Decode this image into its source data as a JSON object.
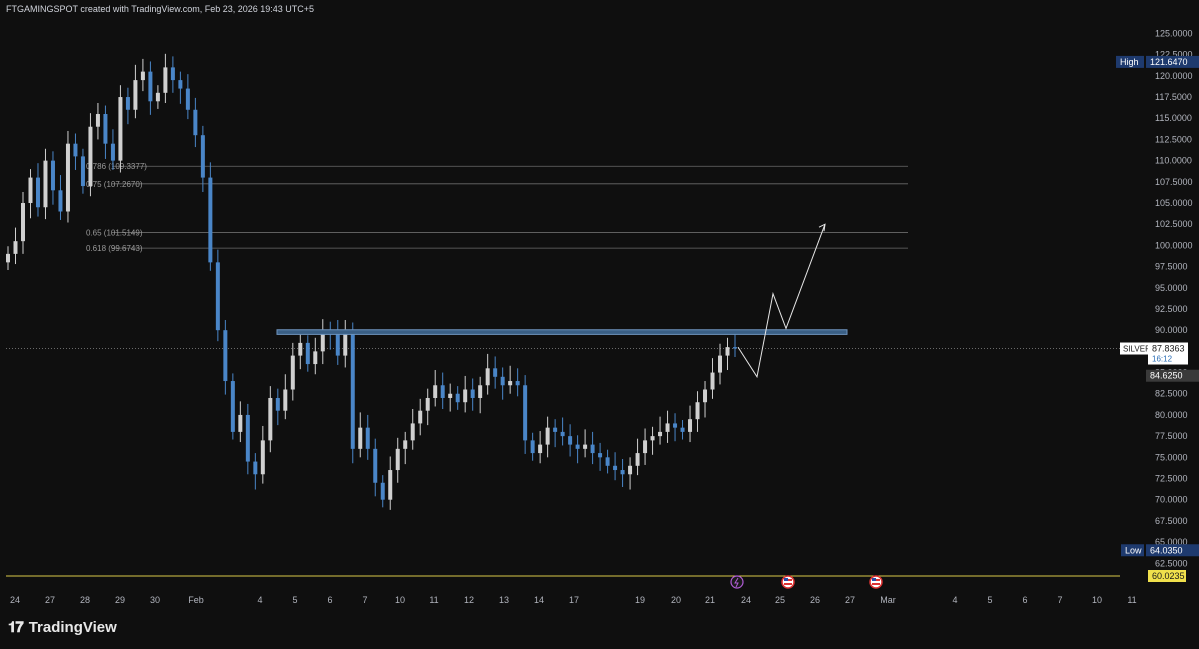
{
  "attribution": "FTGAMINGSPOT created with TradingView.com, Feb 23, 2026 19:43 UTC+5",
  "brand": {
    "name": "TradingView",
    "logo_icon": "tradingview-logo-icon"
  },
  "chart_data": {
    "type": "candlestick",
    "symbol": "SILVER",
    "y_range": [
      61.0,
      126.0
    ],
    "y_ticks": [
      "62.5000",
      "65.0000",
      "67.5000",
      "70.0000",
      "72.5000",
      "75.0000",
      "77.5000",
      "80.0000",
      "82.5000",
      "85.0000",
      "87.5000",
      "90.0000",
      "92.5000",
      "95.0000",
      "97.5000",
      "100.0000",
      "102.5000",
      "105.0000",
      "107.5000",
      "110.0000",
      "112.5000",
      "115.0000",
      "117.5000",
      "120.0000",
      "122.5000",
      "125.0000"
    ],
    "x_ticks": [
      "24",
      "27",
      "28",
      "29",
      "30",
      "Feb",
      "4",
      "5",
      "6",
      "7",
      "10",
      "11",
      "12",
      "13",
      "14",
      "17",
      "19",
      "20",
      "21",
      "24",
      "25",
      "26",
      "27",
      "Mar",
      "4",
      "5",
      "6",
      "7",
      "10",
      "11"
    ],
    "price_badges": {
      "high": {
        "label": "High",
        "value": "121.6470",
        "price": 121.647
      },
      "last": {
        "label": "SILVER",
        "value": "87.8363",
        "countdown": "16:12",
        "price": 87.8363
      },
      "level": {
        "value": "84.6250",
        "price": 84.625
      },
      "low": {
        "label": "Low",
        "value": "64.0350",
        "price": 64.035
      },
      "line": {
        "value": "60.0235",
        "price": 60.0235
      }
    },
    "fib_levels": [
      {
        "label": "0.786 (109.3377)",
        "price": 109.3377
      },
      {
        "label": "0.75 (107.2670)",
        "price": 107.267
      },
      {
        "label": "0.65 (101.5149)",
        "price": 101.5149
      },
      {
        "label": "0.618 (99.6743)",
        "price": 99.6743
      }
    ],
    "zone": {
      "top": 90.05,
      "bottom": 89.5
    },
    "projection_path": [
      88.0,
      84.5,
      94.3,
      90.2,
      102.5
    ],
    "event_icons": [
      "lightning-event-icon",
      "us-flag-event-icon",
      "us-flag-event-icon"
    ],
    "candle_anchors": [
      99.0,
      100.5,
      105.0,
      108.0,
      104.5,
      110.0,
      106.5,
      104.0,
      112.0,
      110.5,
      107.0,
      114.0,
      115.5,
      112.0,
      110.0,
      117.5,
      116.0,
      119.5,
      120.5,
      117.0,
      118.0,
      121.0,
      119.5,
      118.5,
      116.0,
      113.0,
      108.0,
      98.0,
      90.0,
      84.0,
      78.0,
      80.0,
      74.5,
      73.0,
      77.0,
      82.0,
      80.5,
      83.0,
      87.0,
      88.5,
      86.0,
      87.5,
      90.0,
      89.5,
      87.0,
      89.8,
      76.0,
      78.5,
      76.0,
      72.0,
      70.0,
      73.5,
      76.0,
      77.0,
      79.0,
      80.5,
      82.0,
      83.5,
      82.0,
      82.5,
      81.5,
      83.0,
      82.0,
      83.5,
      85.5,
      84.5,
      83.5,
      84.0,
      83.5,
      77.0,
      75.5,
      76.5,
      78.5,
      78.0,
      77.5,
      76.5,
      76.0,
      76.5,
      75.5,
      75.0,
      74.0,
      73.5,
      73.0,
      74.0,
      75.5,
      77.0,
      77.5,
      78.0,
      79.0,
      78.5,
      78.0,
      79.5,
      81.5,
      83.0,
      85.0,
      87.0,
      88.0,
      87.8363
    ]
  }
}
